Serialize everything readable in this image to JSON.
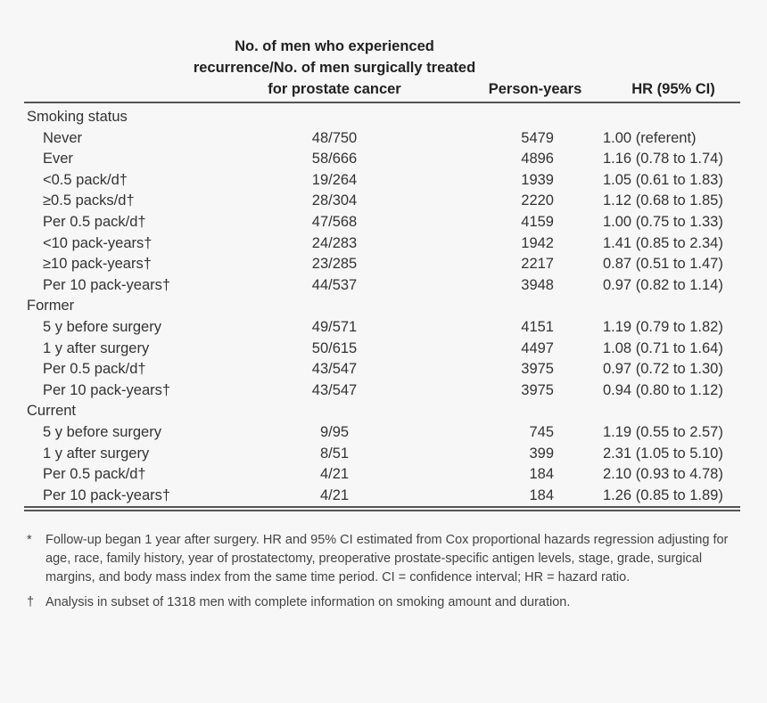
{
  "headers": {
    "col1": "No. of men who experienced recurrence/No. of men surgically treated for prostate cancer",
    "col2": "Person-years",
    "col3": "HR (95% CI)"
  },
  "rows": [
    {
      "label": "Smoking status",
      "section": true
    },
    {
      "label": "Never",
      "events": "48/750",
      "person_years": "5479",
      "hr": "1.00 (referent)"
    },
    {
      "label": "Ever",
      "events": "58/666",
      "person_years": "4896",
      "hr": "1.16 (0.78 to 1.74)"
    },
    {
      "label": "<0.5 pack/d†",
      "events": "19/264",
      "person_years": "1939",
      "hr": "1.05 (0.61 to 1.83)"
    },
    {
      "label": "≥0.5 packs/d†",
      "events": "28/304",
      "person_years": "2220",
      "hr": "1.12 (0.68 to 1.85)"
    },
    {
      "label": "Per 0.5 pack/d†",
      "events": "47/568",
      "person_years": "4159",
      "hr": "1.00 (0.75 to 1.33)"
    },
    {
      "label": "<10 pack-years†",
      "events": "24/283",
      "person_years": "1942",
      "hr": "1.41 (0.85 to 2.34)"
    },
    {
      "label": "≥10 pack-years†",
      "events": "23/285",
      "person_years": "2217",
      "hr": "0.87 (0.51 to 1.47)"
    },
    {
      "label": "Per 10 pack-years†",
      "events": "44/537",
      "person_years": "3948",
      "hr": "0.97 (0.82 to 1.14)"
    },
    {
      "label": "Former",
      "section": true
    },
    {
      "label": "5 y before surgery",
      "events": "49/571",
      "person_years": "4151",
      "hr": "1.19 (0.79 to 1.82)"
    },
    {
      "label": "1 y after surgery",
      "events": "50/615",
      "person_years": "4497",
      "hr": "1.08 (0.71 to 1.64)"
    },
    {
      "label": "Per 0.5 pack/d†",
      "events": "43/547",
      "person_years": "3975",
      "hr": "0.97 (0.72 to 1.30)"
    },
    {
      "label": "Per 10 pack-years†",
      "events": "43/547",
      "person_years": "3975",
      "hr": "0.94 (0.80 to 1.12)"
    },
    {
      "label": "Current",
      "section": true
    },
    {
      "label": "5 y before surgery",
      "events": "9/95",
      "person_years": "745",
      "hr": "1.19 (0.55 to 2.57)"
    },
    {
      "label": "1 y after surgery",
      "events": "8/51",
      "person_years": "399",
      "hr": "2.31 (1.05 to 5.10)"
    },
    {
      "label": "Per 0.5 pack/d†",
      "events": "4/21",
      "person_years": "184",
      "hr": "2.10 (0.93 to 4.78)"
    },
    {
      "label": "Per 10 pack-years†",
      "events": "4/21",
      "person_years": "184",
      "hr": "1.26 (0.85 to 1.89)"
    }
  ],
  "footnotes": [
    {
      "mark": "*",
      "text": "Follow-up began 1 year after surgery. HR and 95%  CI estimated from Cox proportional hazards regression adjusting for age, race, family history, year of prostatectomy, preoperative prostate-specific antigen levels, stage, grade, surgical margins, and body mass index from the same time period. CI = confidence interval; HR = hazard ratio."
    },
    {
      "mark": "†",
      "text": "Analysis in subset of 1318 men with complete information on smoking amount and duration."
    }
  ]
}
